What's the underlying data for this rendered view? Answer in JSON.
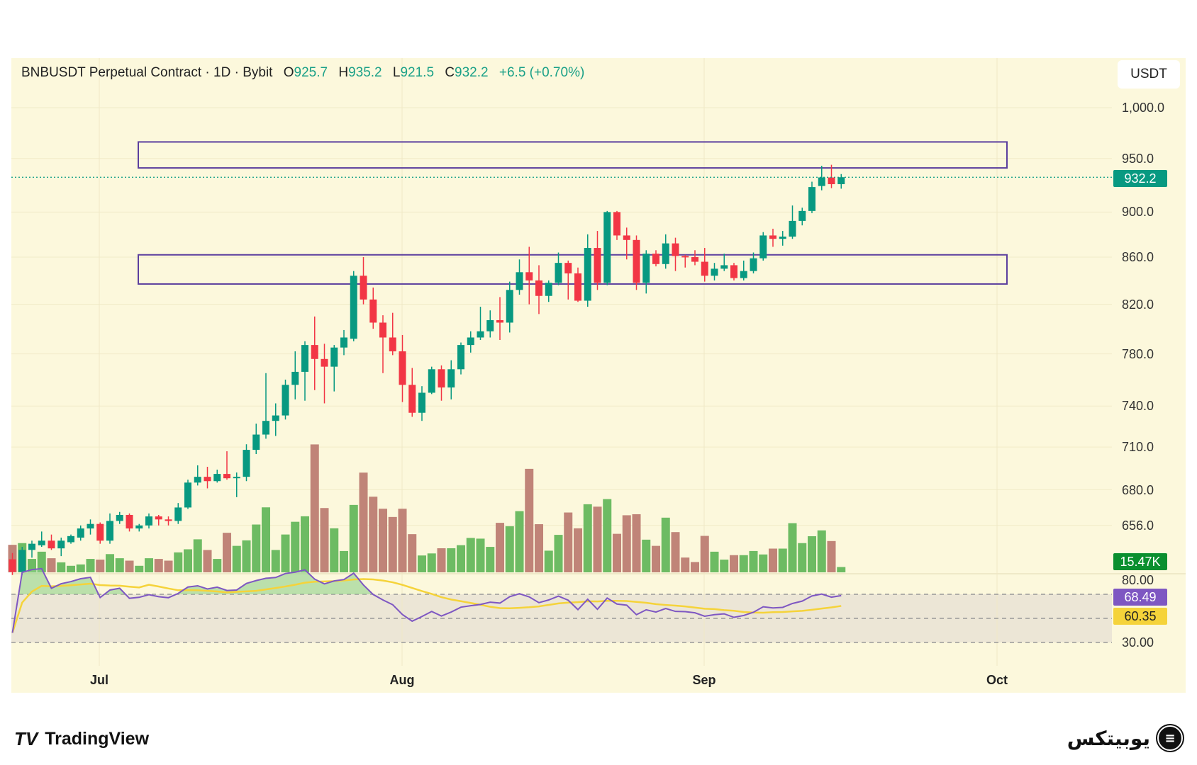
{
  "legend": {
    "symbol": "BNBUSDT Perpetual Contract · 1D · Bybit",
    "o_label": "O",
    "o": "925.7",
    "h_label": "H",
    "h": "935.2",
    "l_label": "L",
    "l": "921.5",
    "c_label": "C",
    "c": "932.2",
    "change": "+6.5 (+0.70%)"
  },
  "currency_button": "USDT",
  "colors": {
    "up": "#089981",
    "down": "#f23645",
    "vol_up": "#6dbb63",
    "vol_down": "#c08478",
    "rsi": "#7e57c2",
    "rsi_ma": "#f5d33a",
    "zone": "#5b3f9e",
    "background": "#fcf8dc"
  },
  "chart_data": {
    "type": "candlestick",
    "title": "BNBUSDT Perpetual Contract · 1D · Bybit",
    "y_scale": "log",
    "ylim": [
      630,
      1010
    ],
    "y_ticks": [
      "1,000.0",
      "950.0",
      "900.0",
      "860.0",
      "820.0",
      "780.0",
      "740.0",
      "710.0",
      "680.0",
      "656.0"
    ],
    "y_tick_values": [
      1000,
      950,
      900,
      860,
      820,
      780,
      740,
      710,
      680,
      656
    ],
    "x_ticks": [
      {
        "label": "Jul",
        "date": "Jul 1"
      },
      {
        "label": "Aug",
        "date": "Aug 1"
      },
      {
        "label": "Sep",
        "date": "Sep 1"
      },
      {
        "label": "Oct",
        "date": "Oct 1"
      }
    ],
    "grid": true,
    "last_price": "932.2",
    "last_volume": "15.47K",
    "volume_unit": "K",
    "zones": [
      {
        "top": 966,
        "bottom": 941
      },
      {
        "top": 862,
        "bottom": 837
      }
    ],
    "columns": [
      "date",
      "open",
      "high",
      "low",
      "close",
      "volume_k"
    ],
    "candles": [
      [
        "Jun 22",
        634,
        638,
        624,
        626,
        80
      ],
      [
        "Jun 23",
        626,
        642,
        624,
        640,
        85
      ],
      [
        "Jun 24",
        640,
        646,
        635,
        644,
        39
      ],
      [
        "Jun 25",
        643,
        652,
        642,
        646,
        60
      ],
      [
        "Jun 26",
        646,
        650,
        640,
        641,
        41
      ],
      [
        "Jun 27",
        641,
        648,
        636,
        646,
        29
      ],
      [
        "Jun 28",
        645,
        650,
        644,
        649,
        19
      ],
      [
        "Jun 29",
        648,
        656,
        646,
        654,
        23
      ],
      [
        "Jun 30",
        654,
        660,
        650,
        657,
        39
      ],
      [
        "Jul 1",
        657,
        658,
        644,
        646,
        37
      ],
      [
        "Jul 2",
        646,
        664,
        644,
        659,
        53
      ],
      [
        "Jul 3",
        659,
        665,
        657,
        663,
        41
      ],
      [
        "Jul 4",
        663,
        664,
        652,
        654,
        34
      ],
      [
        "Jul 5",
        654,
        657,
        652,
        656,
        19
      ],
      [
        "Jul 6",
        656,
        664,
        654,
        662,
        41
      ],
      [
        "Jul 7",
        662,
        663,
        656,
        660,
        39
      ],
      [
        "Jul 8",
        660,
        662,
        656,
        659,
        34
      ],
      [
        "Jul 9",
        659,
        671,
        657,
        668,
        58
      ],
      [
        "Jul 10",
        668,
        687,
        667,
        685,
        67
      ],
      [
        "Jul 11",
        685,
        697,
        683,
        689,
        96
      ],
      [
        "Jul 12",
        689,
        696,
        681,
        686,
        65
      ],
      [
        "Jul 13",
        686,
        694,
        685,
        691,
        39
      ],
      [
        "Jul 14",
        691,
        707,
        687,
        688,
        115
      ],
      [
        "Jul 15",
        688,
        692,
        675,
        689,
        77
      ],
      [
        "Jul 16",
        689,
        712,
        686,
        708,
        93
      ],
      [
        "Jul 17",
        708,
        727,
        705,
        719,
        139
      ],
      [
        "Jul 18",
        719,
        765,
        716,
        729,
        189
      ],
      [
        "Jul 19",
        729,
        742,
        718,
        733,
        65
      ],
      [
        "Jul 20",
        733,
        760,
        730,
        756,
        110
      ],
      [
        "Jul 21",
        756,
        782,
        745,
        766,
        147
      ],
      [
        "Jul 22",
        766,
        790,
        744,
        787,
        163
      ],
      [
        "Jul 23",
        787,
        810,
        752,
        776,
        372
      ],
      [
        "Jul 24",
        776,
        788,
        742,
        770,
        187
      ],
      [
        "Jul 25",
        770,
        787,
        751,
        785,
        128
      ],
      [
        "Jul 26",
        785,
        799,
        779,
        793,
        62
      ],
      [
        "Jul 27",
        792,
        848,
        790,
        844,
        196
      ],
      [
        "Jul 28",
        844,
        860,
        820,
        824,
        290
      ],
      [
        "Jul 29",
        824,
        834,
        800,
        805,
        220
      ],
      [
        "Jul 30",
        805,
        811,
        765,
        793,
        185
      ],
      [
        "Jul 31",
        793,
        813,
        779,
        782,
        161
      ],
      [
        "Aug 1",
        782,
        795,
        743,
        756,
        185
      ],
      [
        "Aug 2",
        756,
        769,
        732,
        735,
        111
      ],
      [
        "Aug 3",
        735,
        755,
        729,
        750,
        49
      ],
      [
        "Aug 4",
        750,
        770,
        749,
        768,
        55
      ],
      [
        "Aug 5",
        768,
        771,
        744,
        754,
        70
      ],
      [
        "Aug 6",
        754,
        775,
        745,
        768,
        70
      ],
      [
        "Aug 7",
        768,
        789,
        764,
        787,
        79
      ],
      [
        "Aug 8",
        787,
        798,
        781,
        793,
        100
      ],
      [
        "Aug 9",
        793,
        818,
        791,
        798,
        98
      ],
      [
        "Aug 10",
        798,
        815,
        793,
        807,
        74
      ],
      [
        "Aug 11",
        807,
        826,
        791,
        805,
        144
      ],
      [
        "Aug 12",
        805,
        839,
        797,
        832,
        134
      ],
      [
        "Aug 13",
        832,
        858,
        828,
        847,
        178
      ],
      [
        "Aug 14",
        847,
        869,
        820,
        840,
        301
      ],
      [
        "Aug 15",
        840,
        853,
        812,
        827,
        140
      ],
      [
        "Aug 16",
        827,
        840,
        822,
        838,
        63
      ],
      [
        "Aug 17",
        838,
        864,
        836,
        855,
        109
      ],
      [
        "Aug 18",
        855,
        857,
        824,
        846,
        174
      ],
      [
        "Aug 19",
        846,
        851,
        822,
        823,
        128
      ],
      [
        "Aug 20",
        823,
        880,
        818,
        868,
        198
      ],
      [
        "Aug 21",
        868,
        883,
        832,
        838,
        191
      ],
      [
        "Aug 22",
        838,
        901,
        836,
        900,
        213
      ],
      [
        "Aug 23",
        900,
        901,
        875,
        879,
        112
      ],
      [
        "Aug 24",
        879,
        886,
        858,
        875,
        166
      ],
      [
        "Aug 25",
        875,
        879,
        832,
        838,
        169
      ],
      [
        "Aug 26",
        838,
        866,
        829,
        863,
        95
      ],
      [
        "Aug 27",
        863,
        866,
        852,
        854,
        77
      ],
      [
        "Aug 28",
        854,
        880,
        850,
        872,
        159
      ],
      [
        "Aug 29",
        872,
        877,
        848,
        861,
        117
      ],
      [
        "Aug 30",
        861,
        862,
        851,
        860,
        43
      ],
      [
        "Aug 31",
        860,
        866,
        853,
        856,
        30
      ],
      [
        "Sep 1",
        856,
        868,
        839,
        844,
        106
      ],
      [
        "Sep 2",
        844,
        855,
        840,
        850,
        60
      ],
      [
        "Sep 3",
        850,
        863,
        848,
        853,
        37
      ],
      [
        "Sep 4",
        853,
        855,
        840,
        842,
        50
      ],
      [
        "Sep 5",
        842,
        857,
        840,
        848,
        50
      ],
      [
        "Sep 6",
        848,
        864,
        846,
        859,
        62
      ],
      [
        "Sep 7",
        859,
        882,
        857,
        879,
        52
      ],
      [
        "Sep 8",
        879,
        885,
        869,
        876,
        69
      ],
      [
        "Sep 9",
        876,
        883,
        870,
        878,
        69
      ],
      [
        "Sep 10",
        878,
        906,
        876,
        892,
        143
      ],
      [
        "Sep 11",
        892,
        904,
        888,
        901,
        85
      ],
      [
        "Sep 12",
        901,
        928,
        899,
        923,
        105
      ],
      [
        "Sep 13",
        924,
        943,
        920,
        932,
        122
      ],
      [
        "Sep 14",
        932,
        944,
        922,
        925.7,
        91
      ],
      [
        "Sep 15",
        925.7,
        935.2,
        921.5,
        932.2,
        15.47
      ]
    ],
    "rsi": {
      "ticks": [
        "80.00",
        "30.00"
      ],
      "levels": [
        70,
        50,
        30
      ],
      "value": "68.49",
      "ma_value": "60.35"
    }
  },
  "footer": {
    "tradingview_logo": "TV",
    "tradingview": "TradingView",
    "brand": "یوبیتکس",
    "brand_icon": "exchange-logo-icon"
  }
}
